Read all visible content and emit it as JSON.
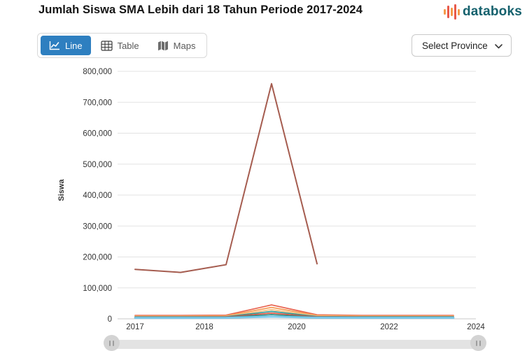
{
  "header": {
    "title": "Jumlah Siswa SMA Lebih dari 18 Tahun Periode 2017-2024",
    "brand": {
      "name": "databoks"
    }
  },
  "toolbar": {
    "tabs": [
      {
        "label": "Line",
        "active": true
      },
      {
        "label": "Table",
        "active": false
      },
      {
        "label": "Maps",
        "active": false
      }
    ],
    "province_dropdown": {
      "label": "Select Province"
    }
  },
  "colors": {
    "active_tab": "#2e7fc0",
    "brand_text": "#15616d",
    "brand_bar_orange": "#f59a49",
    "brand_bar_red": "#e8594a",
    "grid": "#e3e3e3",
    "axis_line": "#c9c9c9"
  },
  "chart_data": {
    "type": "line",
    "title": "",
    "xlabel": "",
    "ylabel": "Siswa",
    "ylim": [
      0,
      800000
    ],
    "grid": true,
    "legend": false,
    "x": [
      2017,
      2018,
      2019,
      2020,
      2021,
      2022,
      2023,
      2024
    ],
    "xtick_labels": [
      "2017",
      "2018",
      "2020",
      "2022",
      "2024"
    ],
    "ytick_labels": [
      "800,000",
      "700,000",
      "600,000",
      "500,000",
      "400,000",
      "300,000",
      "200,000",
      "100,000",
      "0"
    ],
    "series": [
      {
        "name": "line-1",
        "color": "#a55c4f",
        "values": [
          160000,
          150000,
          175000,
          760000,
          178000,
          null,
          null,
          null
        ]
      },
      {
        "name": "line-2",
        "color": "#e8614d",
        "values": [
          11000,
          11000,
          12000,
          45000,
          13000,
          11000,
          11000,
          11000
        ]
      },
      {
        "name": "line-3",
        "color": "#f79b56",
        "values": [
          9000,
          9000,
          10000,
          37000,
          11000,
          9500,
          9500,
          9500
        ]
      },
      {
        "name": "line-4",
        "color": "#f9c285",
        "values": [
          8000,
          8000,
          8500,
          30000,
          9000,
          8000,
          8000,
          8000
        ]
      },
      {
        "name": "line-5",
        "color": "#2e9a96",
        "values": [
          6500,
          6500,
          7000,
          24000,
          7500,
          6800,
          6800,
          6800
        ]
      },
      {
        "name": "line-6",
        "color": "#e0523f",
        "values": [
          5500,
          5500,
          6000,
          18500,
          6000,
          5500,
          5500,
          5500
        ]
      },
      {
        "name": "line-7",
        "color": "#2f8f8b",
        "values": [
          4500,
          4500,
          4800,
          13500,
          5000,
          4600,
          4600,
          4600
        ]
      },
      {
        "name": "line-8",
        "color": "#7ac9ea",
        "values": [
          3000,
          3000,
          3200,
          7000,
          3500,
          3200,
          3200,
          3200
        ]
      }
    ]
  }
}
